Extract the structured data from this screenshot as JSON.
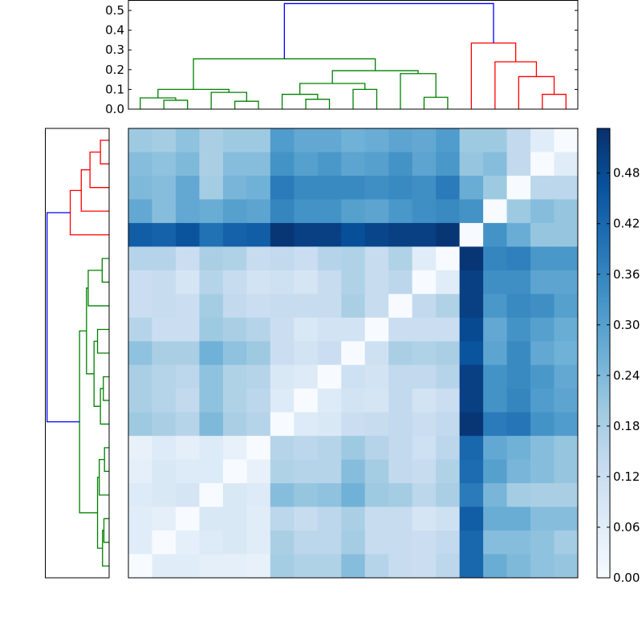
{
  "chart_data": {
    "type": "heatmap",
    "title": "",
    "xlabel": "",
    "ylabel": "",
    "colormap": "Blues",
    "value_range": [
      0.0,
      0.533
    ],
    "colorbar": {
      "ticks": [
        0.0,
        0.06,
        0.12,
        0.18,
        0.24,
        0.3,
        0.36,
        0.42,
        0.48
      ],
      "tick_labels": [
        "0.00",
        "0.06",
        "0.12",
        "0.18",
        "0.24",
        "0.30",
        "0.36",
        "0.42",
        "0.48"
      ],
      "placement": "right"
    },
    "values": [
      [
        0.2,
        0.19,
        0.22,
        0.18,
        0.2,
        0.2,
        0.31,
        0.28,
        0.28,
        0.26,
        0.27,
        0.29,
        0.28,
        0.31,
        0.2,
        0.2,
        0.14,
        0.06,
        0.0
      ],
      [
        0.23,
        0.22,
        0.24,
        0.18,
        0.23,
        0.23,
        0.33,
        0.3,
        0.32,
        0.29,
        0.3,
        0.33,
        0.29,
        0.32,
        0.21,
        0.23,
        0.14,
        0.0,
        0.06
      ],
      [
        0.24,
        0.23,
        0.28,
        0.19,
        0.25,
        0.26,
        0.38,
        0.35,
        0.35,
        0.35,
        0.34,
        0.35,
        0.34,
        0.38,
        0.27,
        0.2,
        0.0,
        0.15,
        0.15
      ],
      [
        0.28,
        0.23,
        0.28,
        0.27,
        0.3,
        0.29,
        0.36,
        0.33,
        0.33,
        0.3,
        0.29,
        0.32,
        0.34,
        0.35,
        0.33,
        0.0,
        0.2,
        0.23,
        0.21
      ],
      [
        0.44,
        0.43,
        0.46,
        0.4,
        0.43,
        0.44,
        0.52,
        0.5,
        0.5,
        0.47,
        0.49,
        0.5,
        0.5,
        0.52,
        0.0,
        0.33,
        0.27,
        0.21,
        0.21
      ],
      [
        0.16,
        0.16,
        0.12,
        0.18,
        0.17,
        0.13,
        0.14,
        0.12,
        0.16,
        0.17,
        0.13,
        0.17,
        0.06,
        0.0,
        0.52,
        0.36,
        0.37,
        0.32,
        0.32
      ],
      [
        0.12,
        0.13,
        0.09,
        0.16,
        0.13,
        0.1,
        0.11,
        0.09,
        0.13,
        0.17,
        0.13,
        0.15,
        0.0,
        0.06,
        0.5,
        0.34,
        0.34,
        0.29,
        0.29
      ],
      [
        0.12,
        0.13,
        0.12,
        0.19,
        0.14,
        0.12,
        0.13,
        0.13,
        0.13,
        0.18,
        0.13,
        0.0,
        0.14,
        0.17,
        0.5,
        0.32,
        0.35,
        0.34,
        0.3
      ],
      [
        0.16,
        0.12,
        0.12,
        0.2,
        0.18,
        0.16,
        0.12,
        0.08,
        0.1,
        0.1,
        0.0,
        0.12,
        0.12,
        0.12,
        0.48,
        0.28,
        0.33,
        0.3,
        0.27
      ],
      [
        0.22,
        0.18,
        0.18,
        0.26,
        0.22,
        0.2,
        0.12,
        0.1,
        0.12,
        0.0,
        0.11,
        0.18,
        0.17,
        0.18,
        0.46,
        0.29,
        0.35,
        0.28,
        0.26
      ],
      [
        0.18,
        0.16,
        0.15,
        0.22,
        0.17,
        0.16,
        0.08,
        0.07,
        0.0,
        0.11,
        0.1,
        0.14,
        0.14,
        0.16,
        0.5,
        0.33,
        0.35,
        0.32,
        0.28
      ],
      [
        0.18,
        0.16,
        0.14,
        0.22,
        0.17,
        0.15,
        0.07,
        0.0,
        0.07,
        0.1,
        0.09,
        0.14,
        0.1,
        0.12,
        0.5,
        0.33,
        0.36,
        0.31,
        0.29
      ],
      [
        0.2,
        0.18,
        0.16,
        0.24,
        0.18,
        0.16,
        0.0,
        0.07,
        0.08,
        0.12,
        0.13,
        0.14,
        0.12,
        0.14,
        0.52,
        0.38,
        0.39,
        0.33,
        0.31
      ],
      [
        0.04,
        0.07,
        0.05,
        0.07,
        0.04,
        0.0,
        0.16,
        0.15,
        0.16,
        0.2,
        0.16,
        0.14,
        0.11,
        0.15,
        0.42,
        0.28,
        0.26,
        0.23,
        0.21
      ],
      [
        0.05,
        0.08,
        0.07,
        0.07,
        0.0,
        0.04,
        0.17,
        0.16,
        0.16,
        0.23,
        0.19,
        0.14,
        0.13,
        0.17,
        0.41,
        0.3,
        0.25,
        0.23,
        0.21
      ],
      [
        0.07,
        0.08,
        0.09,
        0.0,
        0.08,
        0.07,
        0.23,
        0.21,
        0.22,
        0.26,
        0.2,
        0.19,
        0.15,
        0.18,
        0.38,
        0.25,
        0.19,
        0.18,
        0.18
      ],
      [
        0.06,
        0.05,
        0.0,
        0.08,
        0.08,
        0.06,
        0.15,
        0.13,
        0.15,
        0.18,
        0.13,
        0.13,
        0.09,
        0.11,
        0.44,
        0.27,
        0.27,
        0.23,
        0.23
      ],
      [
        0.06,
        0.0,
        0.05,
        0.07,
        0.08,
        0.06,
        0.18,
        0.15,
        0.15,
        0.19,
        0.13,
        0.13,
        0.12,
        0.14,
        0.42,
        0.23,
        0.23,
        0.22,
        0.19
      ],
      [
        0.0,
        0.06,
        0.06,
        0.05,
        0.05,
        0.04,
        0.19,
        0.17,
        0.17,
        0.23,
        0.16,
        0.13,
        0.12,
        0.15,
        0.42,
        0.27,
        0.24,
        0.22,
        0.21
      ]
    ],
    "dendrogram": {
      "y_axis": {
        "ticks": [
          0.0,
          0.1,
          0.2,
          0.3,
          0.4,
          0.5
        ],
        "tick_labels": [
          "0.0",
          "0.1",
          "0.2",
          "0.3",
          "0.4",
          "0.5"
        ],
        "range": [
          0.0,
          0.553
        ]
      },
      "leaf_count": 19,
      "merges": [
        {
          "a": 1,
          "b": 2,
          "height": 0.045,
          "color": "#008000"
        },
        {
          "a": 0,
          "b": 19,
          "height": 0.057,
          "color": "#008000"
        },
        {
          "a": 4,
          "b": 5,
          "height": 0.04,
          "color": "#008000"
        },
        {
          "a": 3,
          "b": 21,
          "height": 0.085,
          "color": "#008000"
        },
        {
          "a": 20,
          "b": 22,
          "height": 0.1,
          "color": "#008000"
        },
        {
          "a": 7,
          "b": 8,
          "height": 0.05,
          "color": "#008000"
        },
        {
          "a": 6,
          "b": 24,
          "height": 0.075,
          "color": "#008000"
        },
        {
          "a": 9,
          "b": 10,
          "height": 0.1,
          "color": "#008000"
        },
        {
          "a": 25,
          "b": 26,
          "height": 0.13,
          "color": "#008000"
        },
        {
          "a": 12,
          "b": 13,
          "height": 0.06,
          "color": "#008000"
        },
        {
          "a": 11,
          "b": 28,
          "height": 0.18,
          "color": "#008000"
        },
        {
          "a": 27,
          "b": 29,
          "height": 0.195,
          "color": "#008000"
        },
        {
          "a": 23,
          "b": 30,
          "height": 0.255,
          "color": "#008000"
        },
        {
          "a": 17,
          "b": 18,
          "height": 0.075,
          "color": "#ff0000"
        },
        {
          "a": 16,
          "b": 32,
          "height": 0.165,
          "color": "#ff0000"
        },
        {
          "a": 15,
          "b": 33,
          "height": 0.24,
          "color": "#ff0000"
        },
        {
          "a": 14,
          "b": 34,
          "height": 0.335,
          "color": "#ff0000"
        },
        {
          "a": 31,
          "b": 35,
          "height": 0.535,
          "color": "#0000ff"
        }
      ]
    }
  }
}
